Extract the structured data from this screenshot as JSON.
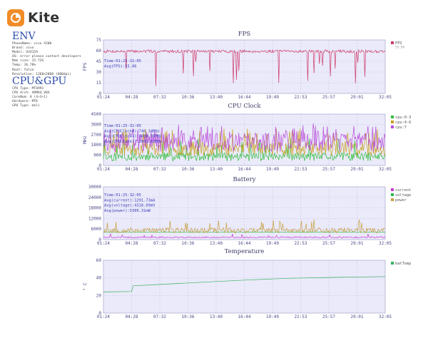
{
  "app": {
    "name": "Kite"
  },
  "env": {
    "title": "ENV",
    "lines": [
      "PhoneName: vivo X200",
      "Brand: vivo",
      "Model: V2415A",
      "OS: error please contact developers",
      "Mem size: 15.72G",
      "Temp: 16.78%",
      "Root: false",
      "Resolution: 1260x2800 (600dpi)"
    ]
  },
  "cpugpu": {
    "title": "CPU&GPU",
    "lines": [
      "CPU Type: MT6991",
      "CPU Arch: ARM64_V8A",
      "CoreNum: 8 (4+3+1)",
      "Hardware: MTK",
      "GPU Type: mali"
    ]
  },
  "x_ticks": [
    "01:24",
    "04:28",
    "07:32",
    "10:36",
    "13:40",
    "16:44",
    "19:49",
    "22:53",
    "25:57",
    "29:01",
    "32:05"
  ],
  "colors": {
    "fps": "#d03a6a",
    "cpu0": "#2ebd3a",
    "cpu4": "#c8a020",
    "cpu7": "#b84ad8",
    "current": "#c83ad0",
    "voltage": "#2ab84a",
    "power": "#c8a040",
    "temp": "#38b060",
    "plot_bg": "#eaeafa",
    "grid": "#b8b8d8"
  },
  "chart_data": [
    {
      "type": "line",
      "title": "FPS",
      "ylabel": "FPS",
      "ylim": [
        0,
        75
      ],
      "yticks": [
        "75",
        "60",
        "45",
        "30",
        "15",
        "0"
      ],
      "legend_placement": "right",
      "series": [
        {
          "name": "FPS",
          "sublabel": "55.06",
          "color_key": "fps",
          "baseline": 59,
          "noise": 2,
          "dip_prob": 0.05,
          "dip_to": [
            10,
            45
          ],
          "seed": 7
        }
      ],
      "annotation": [
        "Time:01:25-32:05",
        "Avg(FPS):55.06"
      ]
    },
    {
      "type": "line",
      "title": "CPU Clock",
      "ylabel": "MHz",
      "ylim": [
        0,
        4500
      ],
      "yticks": [
        "4500",
        "3600",
        "2700",
        "1800",
        "900",
        "0"
      ],
      "legend_placement": "right",
      "series": [
        {
          "name": "cpu:0-3",
          "color_key": "cpu0",
          "baseline": 760,
          "noise": 380,
          "spike_prob": 0.08,
          "spike_to": [
            1600,
            2400
          ],
          "seed": 11
        },
        {
          "name": "cpu:4-6",
          "color_key": "cpu4",
          "baseline": 1500,
          "noise": 650,
          "spike_prob": 0.1,
          "spike_to": [
            2400,
            3300
          ],
          "seed": 23
        },
        {
          "name": "cpu:7",
          "color_key": "cpu7",
          "baseline": 2050,
          "noise": 850,
          "spike_prob": 0.1,
          "spike_to": [
            2900,
            3700
          ],
          "seed": 37
        }
      ],
      "annotation": [
        "Time:01:25-32:05",
        "Avg(CPUClock0):746.34MHz",
        "Avg(CPUClock4):1490.95MHz",
        "Avg(CPUClock7):2041.62MHz"
      ]
    },
    {
      "type": "line",
      "title": "Battery",
      "ylabel": "",
      "ylim": [
        0,
        30000
      ],
      "yticks": [
        "30000",
        "24000",
        "18000",
        "12000",
        "6000",
        "0"
      ],
      "legend_placement": "right",
      "series": [
        {
          "name": "current",
          "color_key": "current",
          "baseline": 1292,
          "noise": 380,
          "spike_prob": 0.03,
          "spike_to": [
            2200,
            3300
          ],
          "seed": 41
        },
        {
          "name": "voltage",
          "color_key": "voltage",
          "baseline": 4318,
          "noise": 25,
          "spike_prob": 0,
          "spike_to": [
            4318,
            4318
          ],
          "seed": 43
        },
        {
          "name": "power",
          "color_key": "power",
          "baseline": 5300,
          "noise": 1500,
          "spike_prob": 0.06,
          "spike_to": [
            8500,
            11500
          ],
          "seed": 53
        }
      ],
      "annotation": [
        "Time:01:25-32:05",
        "Avg(current):1291.73mA",
        "Avg(voltage):4318.09mV",
        "Avg(power):5309.31mW"
      ]
    },
    {
      "type": "line",
      "title": "Temperature",
      "ylabel": "° C",
      "ylim": [
        0,
        60
      ],
      "yticks": [
        "60",
        "40",
        "20",
        "0"
      ],
      "legend_placement": "right",
      "series": [
        {
          "name": "batTemp",
          "color_key": "temp",
          "points": [
            [
              0,
              24
            ],
            [
              0.1,
              24.5
            ],
            [
              0.105,
              31
            ],
            [
              0.2,
              32.5
            ],
            [
              0.35,
              35
            ],
            [
              0.5,
              37.5
            ],
            [
              0.65,
              39.5
            ],
            [
              0.8,
              40.5
            ],
            [
              1,
              41.5
            ]
          ]
        }
      ],
      "annotation": []
    }
  ]
}
